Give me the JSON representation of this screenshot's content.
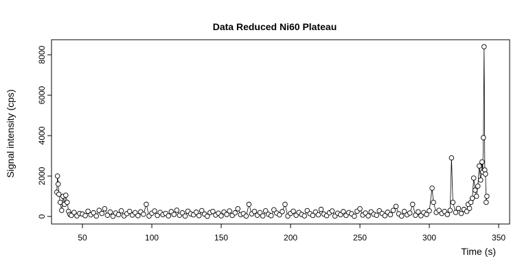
{
  "chart_data": {
    "type": "line",
    "markers": true,
    "title": "Data Reduced Ni60 Plateau",
    "x_label": "Time (s)",
    "y_label": "Signal intensity (cps)",
    "xlim": [
      27.7,
      357.9
    ],
    "ylim": [
      -373,
      8746
    ],
    "xticks": [
      50,
      100,
      150,
      200,
      250,
      300,
      350
    ],
    "yticks": [
      0,
      2000,
      4000,
      6000,
      8000
    ],
    "color": "#000000",
    "x": [
      31.5,
      32,
      32.5,
      33,
      34,
      35,
      36,
      37,
      38,
      39,
      40,
      41,
      42,
      44,
      46,
      48,
      50,
      52,
      54,
      56,
      58,
      60,
      62,
      64,
      66,
      68,
      70,
      72,
      74,
      76,
      78,
      80,
      82,
      84,
      86,
      88,
      90,
      92,
      94,
      96,
      98,
      100,
      102,
      104,
      106,
      108,
      110,
      112,
      114,
      116,
      118,
      120,
      122,
      124,
      126,
      128,
      130,
      132,
      134,
      136,
      138,
      140,
      142,
      144,
      146,
      148,
      150,
      152,
      154,
      156,
      158,
      160,
      162,
      164,
      166,
      168,
      170,
      172,
      174,
      176,
      178,
      180,
      182,
      184,
      186,
      188,
      190,
      192,
      194,
      196,
      198,
      200,
      202,
      204,
      206,
      208,
      210,
      212,
      214,
      216,
      218,
      220,
      222,
      224,
      226,
      228,
      230,
      232,
      234,
      236,
      238,
      240,
      242,
      244,
      246,
      248,
      250,
      252,
      254,
      256,
      258,
      260,
      262,
      264,
      266,
      268,
      270,
      272,
      274,
      276,
      278,
      280,
      282,
      284,
      286,
      288,
      290,
      292,
      294,
      296,
      298,
      300,
      302,
      303,
      305,
      307,
      309,
      311,
      313,
      315,
      316,
      317,
      319,
      321,
      323,
      325,
      327,
      328,
      329,
      330,
      331,
      332,
      333,
      334,
      335,
      336,
      337,
      338,
      338.5,
      339,
      339.5,
      340,
      340.5,
      341,
      341.5
    ],
    "values": [
      1200,
      2000,
      1600,
      1100,
      700,
      300,
      1000,
      600,
      1050,
      700,
      250,
      100,
      50,
      200,
      30,
      150,
      120,
      40,
      260,
      80,
      180,
      20,
      300,
      150,
      380,
      60,
      220,
      10,
      170,
      90,
      280,
      30,
      140,
      250,
      70,
      190,
      40,
      230,
      110,
      600,
      20,
      160,
      270,
      50,
      200,
      90,
      150,
      30,
      240,
      100,
      310,
      60,
      180,
      20,
      260,
      130,
      80,
      210,
      40,
      290,
      120,
      10,
      190,
      250,
      70,
      160,
      30,
      220,
      100,
      270,
      50,
      180,
      380,
      90,
      140,
      20,
      600,
      130,
      250,
      60,
      190,
      30,
      280,
      110,
      40,
      330,
      170,
      80,
      240,
      600,
      20,
      150,
      260,
      60,
      200,
      100,
      30,
      290,
      140,
      50,
      220,
      80,
      350,
      120,
      40,
      180,
      270,
      20,
      160,
      90,
      240,
      50,
      190,
      130,
      10,
      260,
      380,
      70,
      170,
      30,
      230,
      110,
      60,
      280,
      150,
      40,
      210,
      90,
      300,
      500,
      130,
      20,
      250,
      80,
      170,
      600,
      60,
      230,
      40,
      190,
      100,
      280,
      1400,
      700,
      200,
      300,
      150,
      250,
      100,
      300,
      2900,
      700,
      200,
      400,
      150,
      350,
      250,
      600,
      400,
      700,
      900,
      1900,
      1300,
      1000,
      1500,
      2500,
      1800,
      2700,
      2200,
      3900,
      8400,
      2300,
      2100,
      700,
      1000
    ]
  }
}
